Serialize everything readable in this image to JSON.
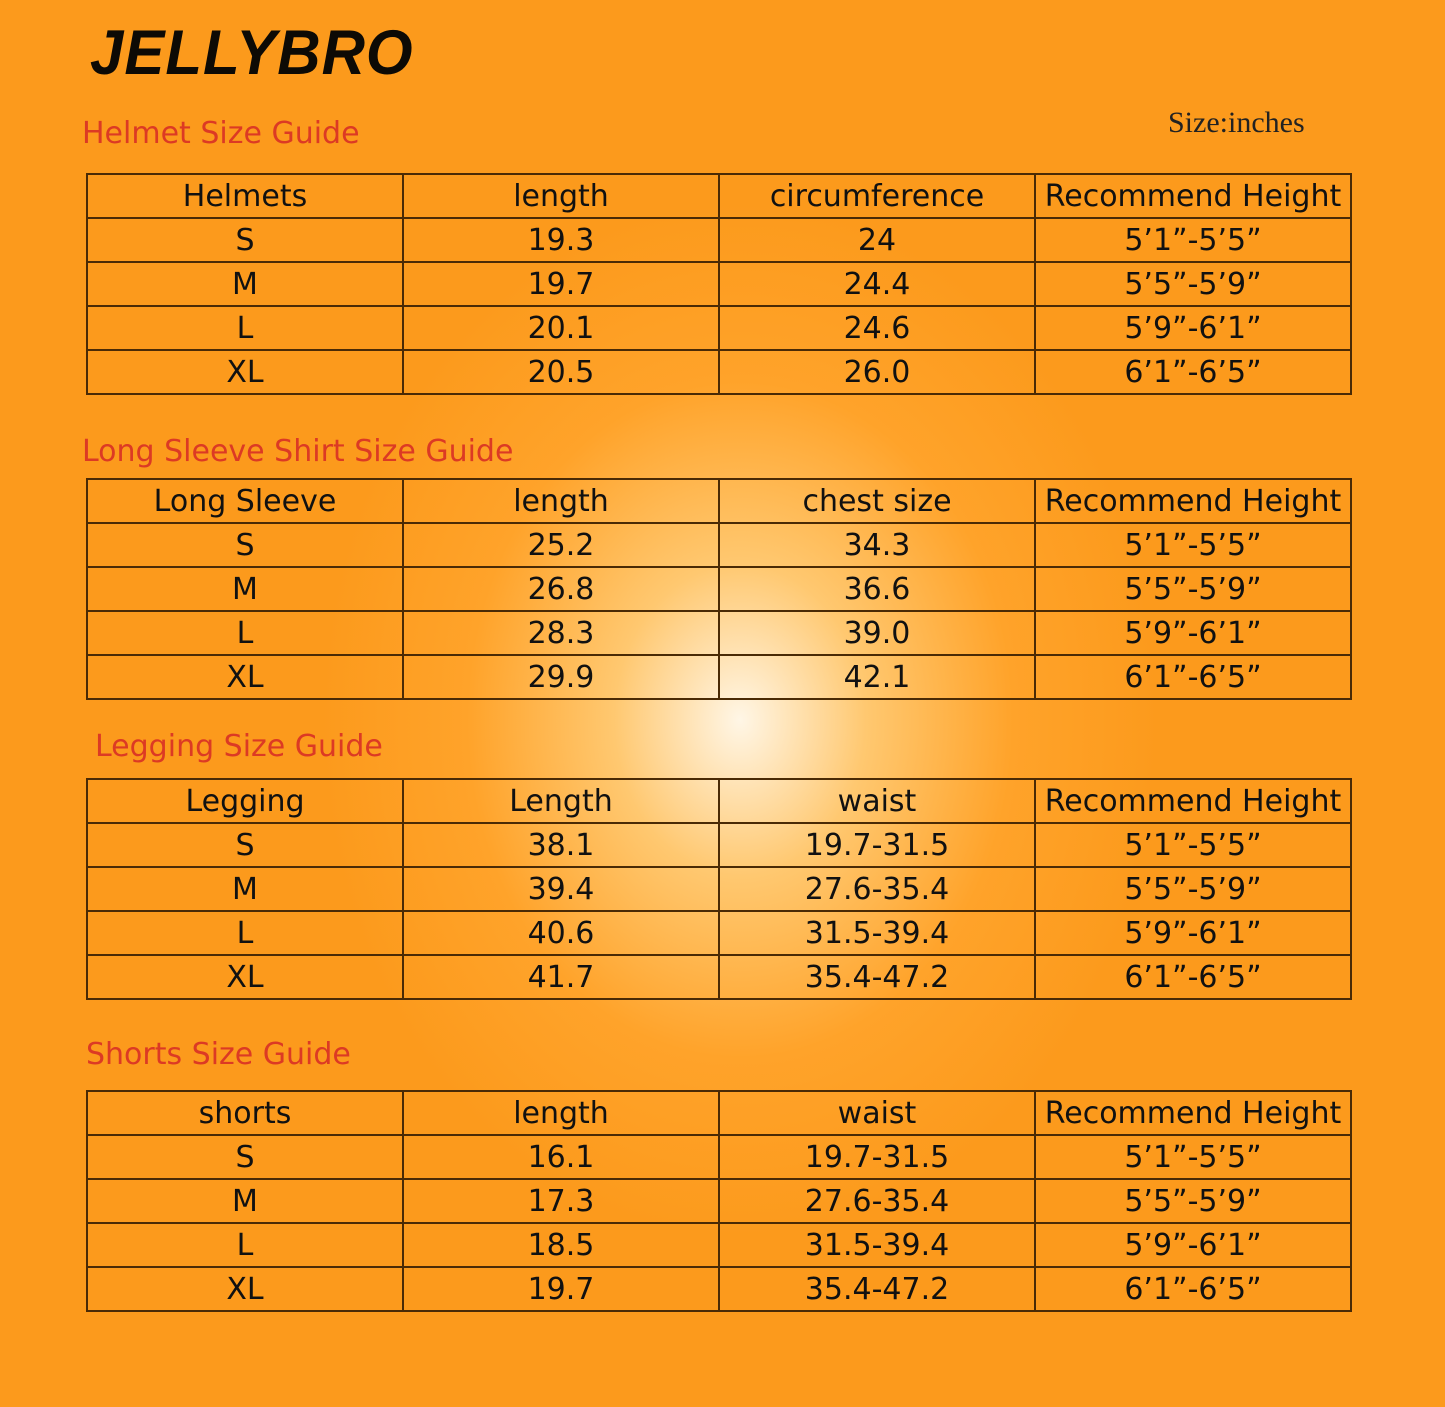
{
  "brand": "JELLYBRO",
  "unit": "Size:inches",
  "sections": [
    {
      "title": "Helmet Size Guide",
      "table": {
        "header": [
          "Helmets",
          "length",
          "circumference",
          "Recommend Height"
        ],
        "rows": [
          [
            "S",
            "19.3",
            "24",
            "5’1”-5’5”"
          ],
          [
            "M",
            "19.7",
            "24.4",
            "5’5”-5’9”"
          ],
          [
            "L",
            "20.1",
            "24.6",
            "5’9”-6’1”"
          ],
          [
            "XL",
            "20.5",
            "26.0",
            "6’1”-6’5”"
          ]
        ]
      }
    },
    {
      "title": "Long Sleeve Shirt Size Guide",
      "table": {
        "header": [
          "Long Sleeve",
          "length",
          "chest size",
          "Recommend Height"
        ],
        "rows": [
          [
            "S",
            "25.2",
            "34.3",
            "5’1”-5’5”"
          ],
          [
            "M",
            "26.8",
            "36.6",
            "5’5”-5’9”"
          ],
          [
            "L",
            "28.3",
            "39.0",
            "5’9”-6’1”"
          ],
          [
            "XL",
            "29.9",
            "42.1",
            "6’1”-6’5”"
          ]
        ]
      }
    },
    {
      "title": "Legging Size Guide",
      "table": {
        "header": [
          "Legging",
          "Length",
          "waist",
          "Recommend Height"
        ],
        "rows": [
          [
            "S",
            "38.1",
            "19.7-31.5",
            "5’1”-5’5”"
          ],
          [
            "M",
            "39.4",
            "27.6-35.4",
            "5’5”-5’9”"
          ],
          [
            "L",
            "40.6",
            "31.5-39.4",
            "5’9”-6’1”"
          ],
          [
            "XL",
            "41.7",
            "35.4-47.2",
            "6’1”-6’5”"
          ]
        ]
      }
    },
    {
      "title": "Shorts Size Guide",
      "table": {
        "header": [
          "shorts",
          "length",
          "waist",
          "Recommend Height"
        ],
        "rows": [
          [
            "S",
            "16.1",
            "19.7-31.5",
            "5’1”-5’5”"
          ],
          [
            "M",
            "17.3",
            "27.6-35.4",
            "5’5”-5’9”"
          ],
          [
            "L",
            "18.5",
            "31.5-39.4",
            "5’9”-6’1”"
          ],
          [
            "XL",
            "19.7",
            "35.4-47.2",
            "6’1”-6’5”"
          ]
        ]
      }
    }
  ]
}
